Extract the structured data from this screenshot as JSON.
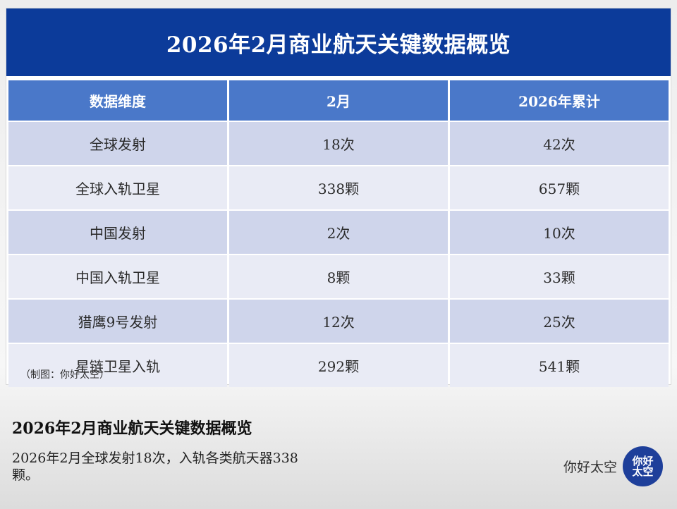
{
  "banner": {
    "title": "2026年2月商业航天关键数据概览"
  },
  "table": {
    "headers": [
      "数据维度",
      "2月",
      "2026年累计"
    ],
    "rows": [
      [
        "全球发射",
        "18次",
        "42次"
      ],
      [
        "全球入轨卫星",
        "338颗",
        "657颗"
      ],
      [
        "中国发射",
        "2次",
        "10次"
      ],
      [
        "中国入轨卫星",
        "8颗",
        "33颗"
      ],
      [
        "猎鹰9号发射",
        "12次",
        "25次"
      ],
      [
        "星链卫星入轨",
        "292颗",
        "541颗"
      ]
    ],
    "credit": "（制图：你好太空）"
  },
  "caption": {
    "title": "2026年2月商业航天关键数据概览",
    "body": "2026年2月全球发射18次，入轨各类航天器338颗。"
  },
  "brand": {
    "name": "你好太空",
    "logo_text": "你好太空",
    "logo_icon": "brand-logo-icon",
    "color": "#1e3f9a"
  },
  "colors": {
    "banner": "#0c3b9a",
    "header": "#4a78c9",
    "row_odd": "#cfd5eb",
    "row_even": "#e9ebf5"
  }
}
